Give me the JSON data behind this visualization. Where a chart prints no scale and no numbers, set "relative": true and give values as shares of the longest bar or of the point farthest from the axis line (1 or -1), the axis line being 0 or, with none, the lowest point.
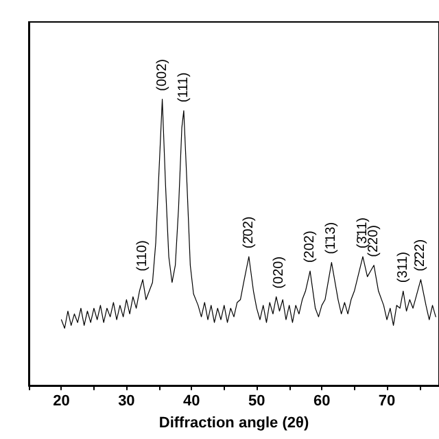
{
  "chart_data": {
    "type": "line",
    "relative": true,
    "xlabel": "Diffraction angle (2θ)",
    "xlim": [
      15,
      78
    ],
    "xticks": [
      20,
      30,
      40,
      50,
      60,
      70
    ],
    "grid": false,
    "marker": "none",
    "line_style": "solid",
    "series": [
      {
        "color": "#000000",
        "x": [
          20,
          20.5,
          21,
          21.5,
          22,
          22.5,
          23,
          23.5,
          24,
          24.5,
          25,
          25.5,
          26,
          26.5,
          27,
          27.5,
          28,
          28.5,
          29,
          29.5,
          30,
          30.5,
          31,
          31.5,
          32,
          32.5,
          33,
          33.5,
          34,
          34.5,
          35,
          35.5,
          36,
          36.5,
          37,
          37.5,
          38,
          38.5,
          38.8,
          39.3,
          39.8,
          40.3,
          41,
          41.5,
          42,
          42.5,
          43,
          43.5,
          44,
          44.5,
          45,
          45.5,
          46,
          46.5,
          47,
          47.5,
          48,
          48.8,
          49.5,
          50,
          50.5,
          51,
          51.5,
          52,
          52.5,
          53,
          53.5,
          54,
          54.5,
          55,
          55.5,
          56,
          56.5,
          57,
          57.5,
          58.2,
          59,
          59.5,
          60,
          60.5,
          61.5,
          62.5,
          63,
          63.5,
          64,
          64.5,
          65,
          66.3,
          67,
          67.5,
          68,
          68.7,
          69.5,
          70,
          70.5,
          71,
          71.5,
          72,
          72.5,
          73,
          73.5,
          74,
          75.2,
          76,
          76.5,
          77,
          77.5
        ],
        "values": [
          0.23,
          0.2,
          0.26,
          0.21,
          0.25,
          0.22,
          0.27,
          0.21,
          0.26,
          0.22,
          0.27,
          0.23,
          0.28,
          0.22,
          0.27,
          0.24,
          0.29,
          0.23,
          0.28,
          0.24,
          0.3,
          0.25,
          0.31,
          0.27,
          0.33,
          0.37,
          0.3,
          0.33,
          0.36,
          0.5,
          0.75,
          1,
          0.7,
          0.45,
          0.36,
          0.42,
          0.62,
          0.9,
          0.96,
          0.7,
          0.42,
          0.32,
          0.28,
          0.24,
          0.29,
          0.23,
          0.28,
          0.22,
          0.27,
          0.23,
          0.28,
          0.22,
          0.27,
          0.24,
          0.29,
          0.3,
          0.36,
          0.45,
          0.33,
          0.27,
          0.23,
          0.28,
          0.22,
          0.29,
          0.25,
          0.31,
          0.26,
          0.3,
          0.23,
          0.28,
          0.22,
          0.28,
          0.25,
          0.3,
          0.33,
          0.4,
          0.27,
          0.24,
          0.28,
          0.3,
          0.43,
          0.3,
          0.25,
          0.29,
          0.25,
          0.3,
          0.33,
          0.45,
          0.38,
          0.4,
          0.42,
          0.33,
          0.28,
          0.23,
          0.27,
          0.21,
          0.28,
          0.27,
          0.33,
          0.26,
          0.3,
          0.27,
          0.37,
          0.28,
          0.23,
          0.28,
          0.24
        ]
      }
    ],
    "annotations": [
      {
        "text": "(110)",
        "x": 32.5,
        "y": 0.37
      },
      {
        "text": "(002)",
        "x": 35.5,
        "y": 1
      },
      {
        "text": "(111)",
        "x": 38.8,
        "y": 0.96
      },
      {
        "text": "(2̄02)",
        "x": 48.8,
        "y": 0.45
      },
      {
        "text": "(020)",
        "x": 53.5,
        "y": 0.31
      },
      {
        "text": "(202)",
        "x": 58.2,
        "y": 0.4
      },
      {
        "text": "(1̄13)",
        "x": 61.5,
        "y": 0.43
      },
      {
        "text": "(3̄11)",
        "x": 66.3,
        "y": 0.45
      },
      {
        "text": "(220)",
        "x": 68,
        "y": 0.42
      },
      {
        "text": "(311)",
        "x": 72.5,
        "y": 0.33
      },
      {
        "text": "(2̄22)",
        "x": 75.2,
        "y": 0.37
      }
    ]
  }
}
